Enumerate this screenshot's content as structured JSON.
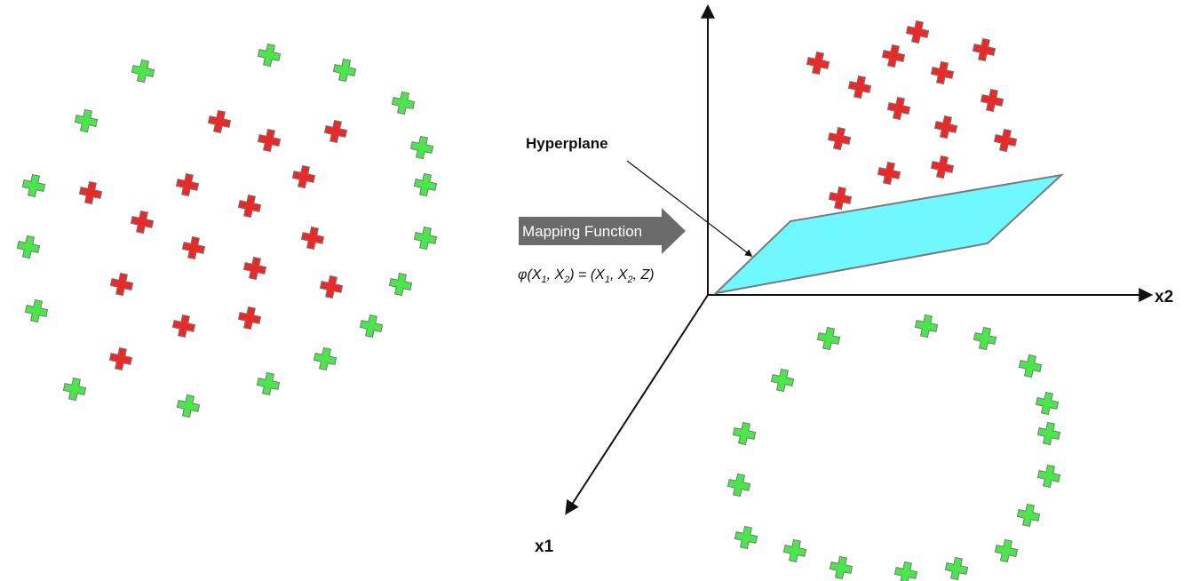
{
  "colors": {
    "green_marker": "#4be64b",
    "red_marker": "#e82a2a",
    "marker_outline": "#777777",
    "plane_fill": "#6ff8ff",
    "plane_stroke": "#7a7a7a",
    "arrow_fill": "#6b6b6b",
    "axis": "#111111"
  },
  "labels": {
    "hyperplane": "Hyperplane",
    "mapping_function": "Mapping Function",
    "formula": {
      "phi": "φ(X",
      "sub1": "1",
      "sep1": ", X",
      "sub2": "2",
      "mid": ") = (X",
      "sub3": "1",
      "sep2": ", X",
      "sub4": "2",
      "end": ", Z)"
    },
    "axis_x1": "x1",
    "axis_x2": "x2"
  },
  "icons": {
    "marker": "cross-marker-icon",
    "arrow": "right-arrow-icon"
  }
}
